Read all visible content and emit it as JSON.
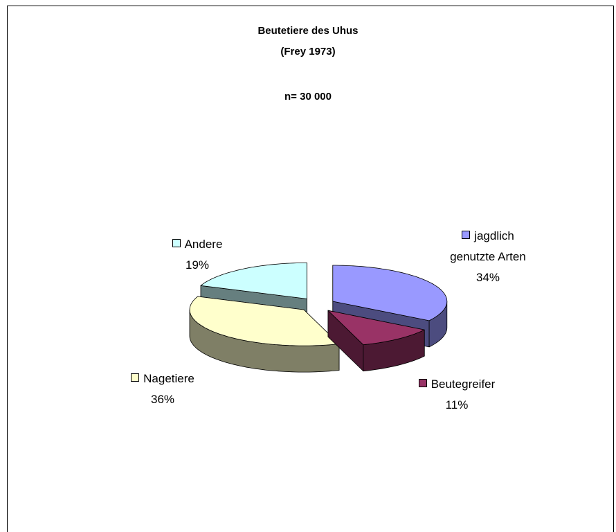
{
  "chart_data": {
    "type": "pie",
    "title": "Beutetiere des Uhus",
    "subtitle": "(Frey 1973)",
    "annotation": "n= 30 000",
    "categories": [
      "jagdlich genutzte Arten",
      "Beutegreifer",
      "Nagetiere",
      "Andere"
    ],
    "values": [
      34,
      11,
      36,
      19
    ],
    "value_labels": [
      "34%",
      "11%",
      "36%",
      "19%"
    ],
    "colors": [
      "#9999ff",
      "#993366",
      "#ffffcc",
      "#ccffff"
    ]
  }
}
